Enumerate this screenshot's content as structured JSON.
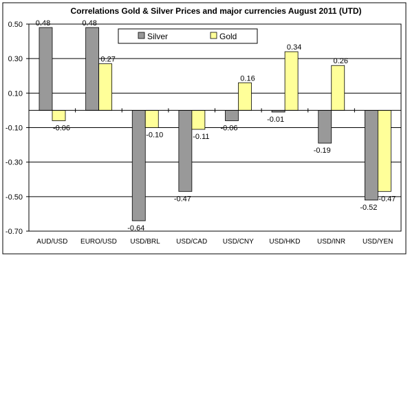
{
  "chart_data": {
    "type": "bar",
    "title": "Correlations Gold & Silver Prices and major currencies August 2011 (UTD)",
    "categories": [
      "AUD/USD",
      "EURO/USD",
      "USD/BRL",
      "USD/CAD",
      "USD/CNY",
      "USD/HKD",
      "USD/INR",
      "USD/YEN"
    ],
    "series": [
      {
        "name": "Silver",
        "values": [
          0.48,
          0.48,
          -0.64,
          -0.47,
          -0.06,
          -0.01,
          -0.19,
          -0.52
        ],
        "labels": [
          "0.48",
          "0.48",
          "-0.64",
          "-0.47",
          "-0.06",
          "-0.01",
          "-0.19",
          "-0.52"
        ],
        "color": "#999999"
      },
      {
        "name": "Gold",
        "values": [
          -0.06,
          0.27,
          -0.1,
          -0.11,
          0.16,
          0.34,
          0.26,
          -0.47
        ],
        "labels": [
          "-0.06",
          "0.27",
          "-0.10",
          "-0.11",
          "0.16",
          "0.34",
          "0.26",
          "-0.47"
        ],
        "color": "#ffff99"
      }
    ],
    "ylim": [
      -0.7,
      0.5
    ],
    "yticks": [
      "0.50",
      "0.30",
      "0.10",
      "-0.10",
      "-0.30",
      "-0.50",
      "-0.70"
    ],
    "ytick_values": [
      0.5,
      0.3,
      0.1,
      -0.1,
      -0.3,
      -0.5,
      -0.7
    ],
    "xlabel": "",
    "ylabel": "",
    "grid": true,
    "legend_position": "top"
  }
}
